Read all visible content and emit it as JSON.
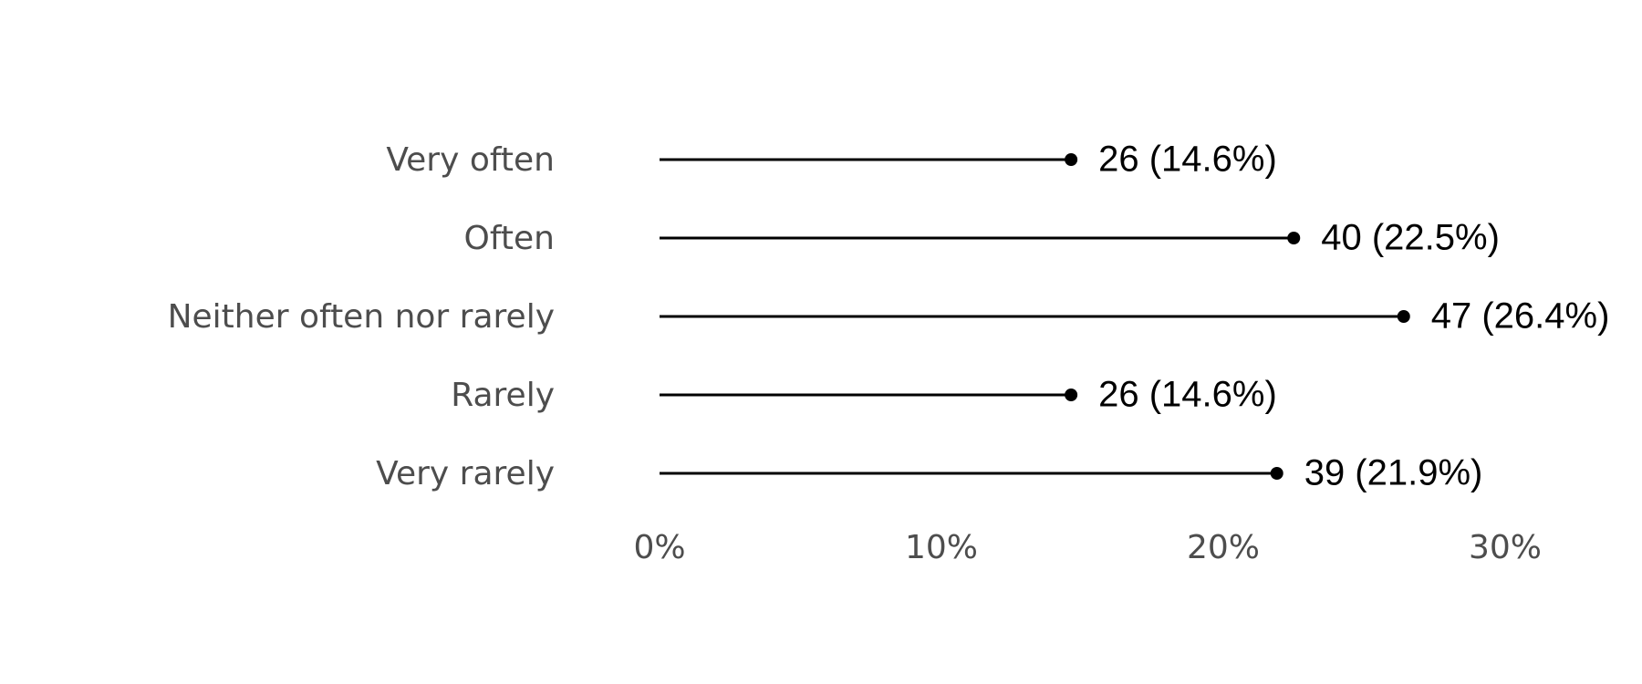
{
  "chart_data": {
    "type": "lollipop",
    "categories": [
      "Very often",
      "Often",
      "Neither often nor rarely",
      "Rarely",
      "Very rarely"
    ],
    "values": [
      14.6,
      22.5,
      26.4,
      14.6,
      21.9
    ],
    "value_labels": [
      "26 (14.6%)",
      "40 (22.5%)",
      "47 (26.4%)",
      "26 (14.6%)",
      "39 (21.9%)"
    ],
    "color": "#000000",
    "xlim": [
      0,
      30
    ],
    "xticks": [
      {
        "value": 0,
        "label": "0%"
      },
      {
        "value": 10,
        "label": "10%"
      },
      {
        "value": 20,
        "label": "20%"
      },
      {
        "value": 30,
        "label": "30%"
      }
    ],
    "grid": false
  }
}
